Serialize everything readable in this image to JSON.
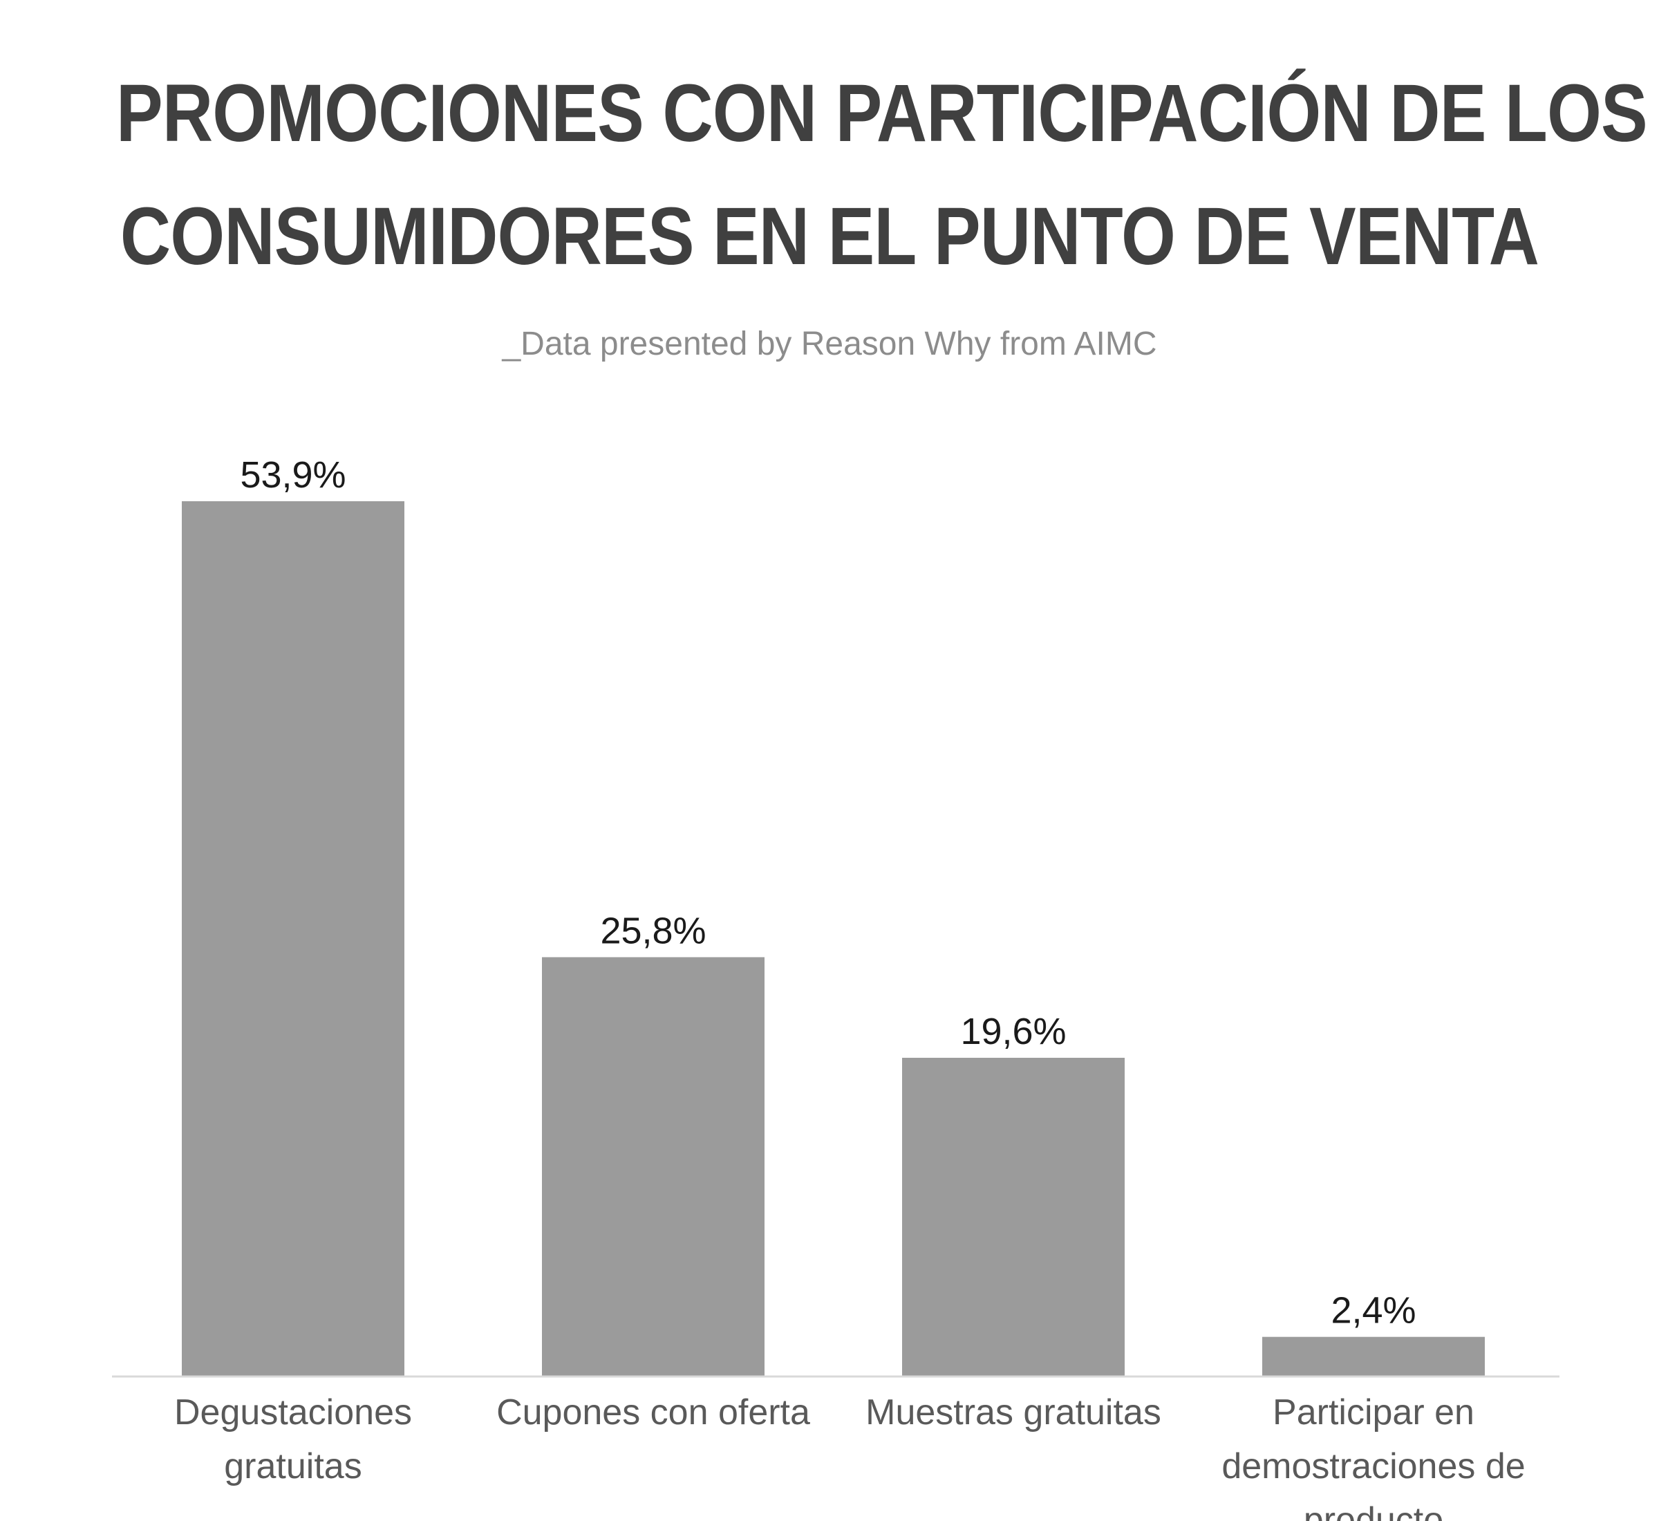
{
  "chart_data": {
    "type": "bar",
    "title": "PROMOCIONES CON PARTICIPACIÓN DE LOS CONSUMIDORES EN EL PUNTO DE VENTA",
    "title_lines": [
      "PROMOCIONES CON PARTICIPACIÓN DE LOS",
      "CONSUMIDORES EN EL PUNTO DE VENTA"
    ],
    "subtitle": "_Data presented by Reason Why from AIMC",
    "categories": [
      "Degustaciones gratuitas",
      "Cupones con oferta",
      "Muestras gratuitas",
      "Participar en demostraciones de producto"
    ],
    "category_lines": [
      [
        "Degustaciones",
        "gratuitas"
      ],
      [
        "Cupones con oferta"
      ],
      [
        "Muestras gratuitas"
      ],
      [
        "Participar en",
        "demostraciones de",
        "producto"
      ]
    ],
    "values": [
      53.9,
      25.8,
      19.6,
      2.4
    ],
    "data_labels": [
      "53,9%",
      "25,8%",
      "19,6%",
      "2,4%"
    ],
    "xlabel": "",
    "ylabel": "",
    "ylim": [
      0,
      60
    ],
    "grid": false,
    "legend": "none",
    "bar_color": "#9b9b9b",
    "axis_color": "#d9d9d9"
  }
}
